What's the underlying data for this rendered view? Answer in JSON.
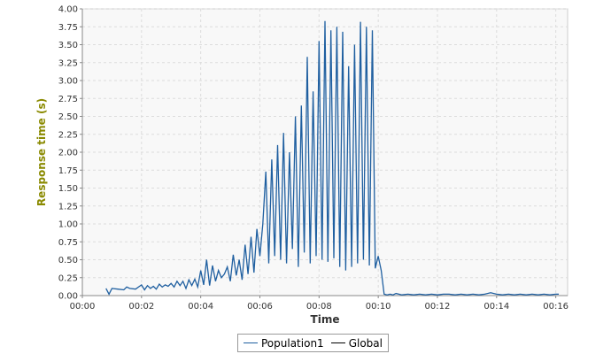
{
  "colors": {
    "plot_bg": "#f8f8f8",
    "grid": "#dcdcdc",
    "axis_title_y": "#8a8a00",
    "axis_title_x": "#333333",
    "population1": "#1f5fa0",
    "global": "#000000"
  },
  "chart_data": {
    "type": "line",
    "title": "",
    "xlabel": "Time",
    "ylabel": "Response time (s)",
    "xlim": [
      0,
      16.4
    ],
    "ylim": [
      0,
      4.0
    ],
    "x_ticks": [
      0,
      2,
      4,
      6,
      8,
      10,
      12,
      14,
      16
    ],
    "x_tick_labels": [
      "00:00",
      "00:02",
      "00:04",
      "00:06",
      "00:08",
      "00:10",
      "00:12",
      "00:14",
      "00:16"
    ],
    "y_ticks": [
      0,
      0.25,
      0.5,
      0.75,
      1.0,
      1.25,
      1.5,
      1.75,
      2.0,
      2.25,
      2.5,
      2.75,
      3.0,
      3.25,
      3.5,
      3.75,
      4.0
    ],
    "y_tick_labels": [
      "0.00",
      "0.25",
      "0.50",
      "0.75",
      "1.00",
      "1.25",
      "1.50",
      "1.75",
      "2.00",
      "2.25",
      "2.50",
      "2.75",
      "3.00",
      "3.25",
      "3.50",
      "3.75",
      "4.00"
    ],
    "grid": true,
    "legend_position": "bottom-center",
    "series": [
      {
        "name": "Population1",
        "x": [
          0.8,
          0.9,
          1.0,
          1.2,
          1.4,
          1.5,
          1.6,
          1.8,
          2.0,
          2.1,
          2.2,
          2.3,
          2.4,
          2.5,
          2.6,
          2.7,
          2.8,
          2.9,
          3.0,
          3.1,
          3.2,
          3.3,
          3.4,
          3.5,
          3.6,
          3.7,
          3.8,
          3.9,
          4.0,
          4.1,
          4.2,
          4.3,
          4.4,
          4.5,
          4.6,
          4.7,
          4.8,
          4.9,
          5.0,
          5.1,
          5.2,
          5.3,
          5.4,
          5.5,
          5.6,
          5.7,
          5.8,
          5.9,
          6.0,
          6.1,
          6.2,
          6.3,
          6.4,
          6.5,
          6.6,
          6.7,
          6.8,
          6.9,
          7.0,
          7.1,
          7.2,
          7.3,
          7.4,
          7.5,
          7.6,
          7.7,
          7.8,
          7.9,
          8.0,
          8.1,
          8.2,
          8.3,
          8.4,
          8.5,
          8.6,
          8.7,
          8.8,
          8.9,
          9.0,
          9.1,
          9.2,
          9.3,
          9.4,
          9.5,
          9.6,
          9.7,
          9.8,
          9.9,
          10.0,
          10.1,
          10.2,
          10.3,
          10.4,
          10.5,
          10.6,
          10.8,
          11.0,
          11.2,
          11.4,
          11.6,
          11.8,
          12.0,
          12.2,
          12.4,
          12.6,
          12.8,
          13.0,
          13.2,
          13.4,
          13.6,
          13.8,
          14.0,
          14.2,
          14.4,
          14.6,
          14.8,
          15.0,
          15.2,
          15.4,
          15.6,
          15.8,
          16.0,
          16.1
        ],
        "y": [
          0.1,
          0.02,
          0.1,
          0.09,
          0.08,
          0.12,
          0.1,
          0.09,
          0.15,
          0.08,
          0.14,
          0.1,
          0.13,
          0.09,
          0.16,
          0.12,
          0.15,
          0.13,
          0.17,
          0.12,
          0.2,
          0.14,
          0.2,
          0.1,
          0.22,
          0.14,
          0.23,
          0.12,
          0.35,
          0.15,
          0.5,
          0.14,
          0.42,
          0.2,
          0.35,
          0.25,
          0.3,
          0.4,
          0.2,
          0.57,
          0.28,
          0.5,
          0.22,
          0.71,
          0.3,
          0.82,
          0.32,
          0.93,
          0.55,
          1.0,
          1.73,
          0.45,
          1.9,
          0.55,
          2.1,
          0.5,
          2.27,
          0.45,
          2.0,
          0.65,
          2.5,
          0.4,
          2.65,
          0.6,
          3.33,
          0.45,
          2.85,
          0.55,
          3.55,
          0.5,
          3.83,
          0.47,
          3.7,
          0.52,
          3.75,
          0.4,
          3.68,
          0.35,
          3.2,
          0.4,
          3.5,
          0.45,
          3.82,
          0.5,
          3.75,
          0.42,
          3.7,
          0.38,
          0.55,
          0.35,
          0.02,
          0.01,
          0.02,
          0.01,
          0.03,
          0.01,
          0.02,
          0.01,
          0.02,
          0.01,
          0.02,
          0.01,
          0.02,
          0.02,
          0.01,
          0.02,
          0.01,
          0.02,
          0.01,
          0.02,
          0.04,
          0.02,
          0.01,
          0.02,
          0.01,
          0.02,
          0.01,
          0.02,
          0.01,
          0.02,
          0.01,
          0.02,
          0.02
        ]
      }
    ]
  },
  "legend": {
    "items": [
      {
        "label": "Population1",
        "color": "#1f5fa0"
      },
      {
        "label": "Global",
        "color": "#000000"
      }
    ]
  }
}
